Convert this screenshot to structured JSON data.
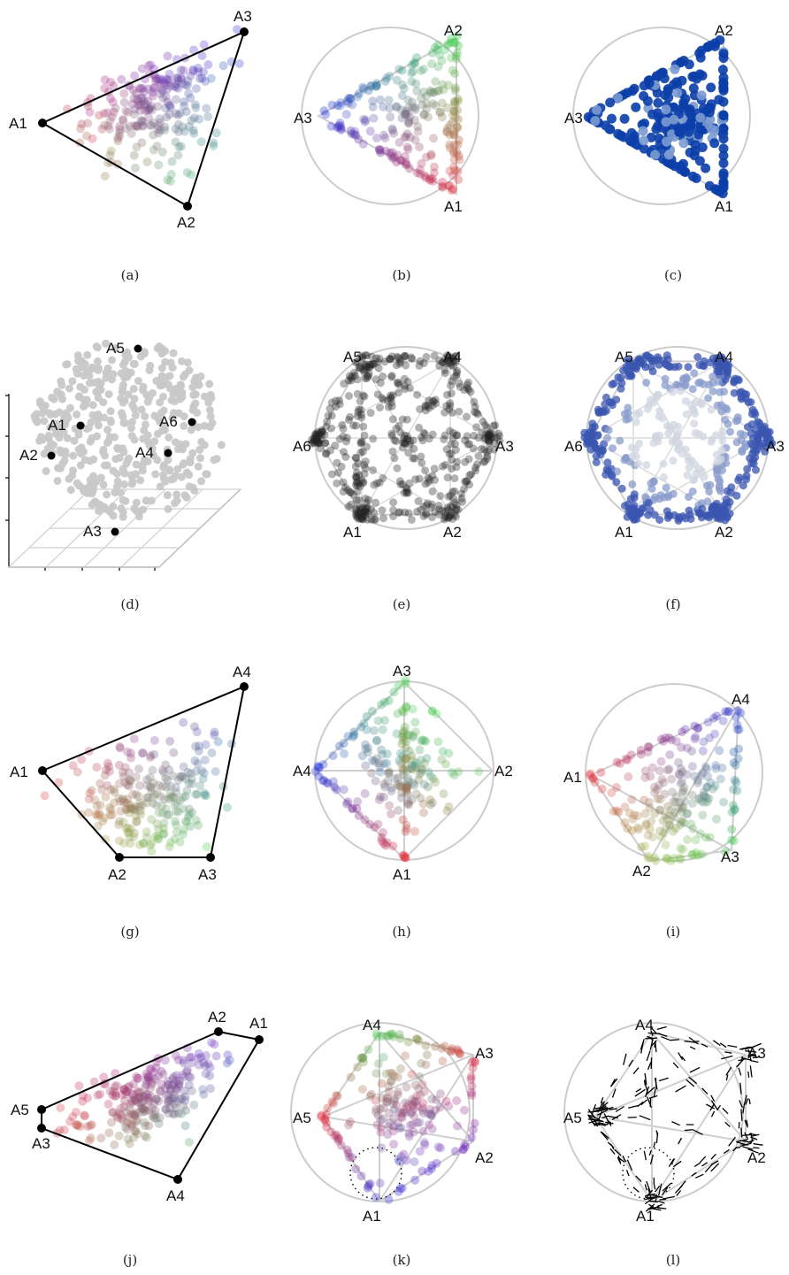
{
  "colors": {
    "ring": "#cccccc",
    "guide": "#cfcfcf",
    "outline": "#000000",
    "anchor": "#000000",
    "red": "#e8323c",
    "green": "#3fd24b",
    "blue": "#2b36e0",
    "navy": "#0b3ea8",
    "gray": "#c8c8c8",
    "dark": "#222222"
  },
  "panels": [
    {
      "id": "a",
      "caption": "(a)",
      "anchors": [
        "A1",
        "A2",
        "A3"
      ]
    },
    {
      "id": "b",
      "caption": "(b)",
      "anchors": [
        "A1",
        "A2",
        "A3"
      ]
    },
    {
      "id": "c",
      "caption": "(c)",
      "anchors": [
        "A1",
        "A2",
        "A3"
      ]
    },
    {
      "id": "d",
      "caption": "(d)",
      "anchors": [
        "A1",
        "A2",
        "A3",
        "A4",
        "A5",
        "A6"
      ]
    },
    {
      "id": "e",
      "caption": "(e)",
      "anchors": [
        "A1",
        "A2",
        "A3",
        "A4",
        "A5",
        "A6"
      ]
    },
    {
      "id": "f",
      "caption": "(f)",
      "anchors": [
        "A1",
        "A2",
        "A3",
        "A4",
        "A5",
        "A6"
      ]
    },
    {
      "id": "g",
      "caption": "(g)",
      "anchors": [
        "A1",
        "A2",
        "A3",
        "A4"
      ]
    },
    {
      "id": "h",
      "caption": "(h)",
      "anchors": [
        "A1",
        "A2",
        "A3",
        "A4"
      ]
    },
    {
      "id": "i",
      "caption": "(i)",
      "anchors": [
        "A1",
        "A2",
        "A3",
        "A4"
      ]
    },
    {
      "id": "j",
      "caption": "(j)",
      "anchors": [
        "A1",
        "A2",
        "A3",
        "A4",
        "A5"
      ]
    },
    {
      "id": "k",
      "caption": "(k)",
      "anchors": [
        "A1",
        "A2",
        "A3",
        "A4",
        "A5"
      ]
    },
    {
      "id": "l",
      "caption": "(l)",
      "anchors": [
        "A1",
        "A2",
        "A3",
        "A4",
        "A5"
      ]
    }
  ]
}
